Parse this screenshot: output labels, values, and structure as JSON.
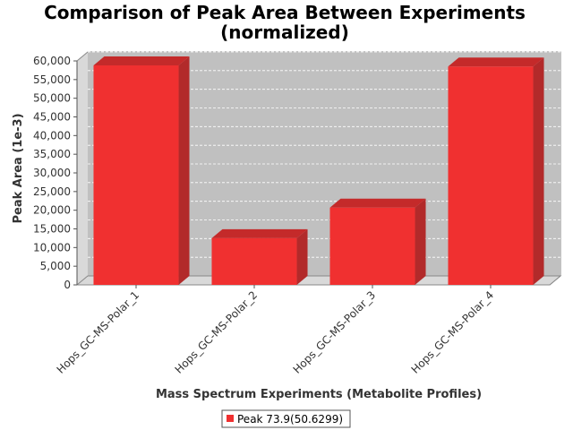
{
  "chart_data": {
    "type": "bar",
    "title_lines": [
      "Comparison of Peak Area Between Experiments",
      "(normalized)"
    ],
    "xlabel": "Mass Spectrum Experiments (Metabolite Profiles)",
    "ylabel": "Peak Area (1e-3)",
    "categories": [
      "Hops_GC-MS-Polar_1",
      "Hops_GC-MS-Polar_2",
      "Hops_GC-MS-Polar_3",
      "Hops_GC-MS-Polar_4"
    ],
    "series": [
      {
        "name": "Peak 73.9(50.6299)",
        "values": [
          58800,
          12500,
          20700,
          58500
        ]
      }
    ],
    "ylim": [
      0,
      60000
    ],
    "yticks": [
      0,
      5000,
      10000,
      15000,
      20000,
      25000,
      30000,
      35000,
      40000,
      45000,
      50000,
      55000,
      60000
    ],
    "ytick_labels": [
      "0",
      "5,000",
      "10,000",
      "15,000",
      "20,000",
      "25,000",
      "30,000",
      "35,000",
      "40,000",
      "45,000",
      "50,000",
      "55,000",
      "60,000"
    ],
    "grid": true,
    "legend_position": "bottom",
    "colors": {
      "bar": "#f03030",
      "bar_top": "#c42a2a",
      "bar_side": "#b22a2a",
      "plot_bg": "#c0c0c0",
      "plot_wall": "#d9d9d9"
    }
  }
}
